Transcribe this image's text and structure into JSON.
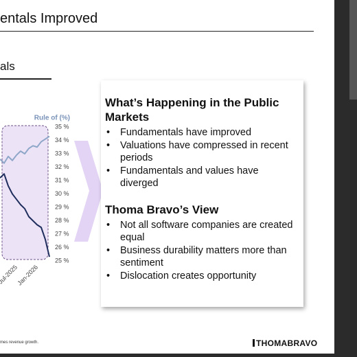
{
  "header": {
    "title": "entals Improved",
    "subtitle": "als"
  },
  "chart_data": {
    "type": "line",
    "y_axis_label": "Rule of (%)",
    "ylim": [
      25,
      35
    ],
    "yticks": [
      {
        "value": 25,
        "label": "25 %"
      },
      {
        "value": 26,
        "label": "26 %"
      },
      {
        "value": 27,
        "label": "27 %"
      },
      {
        "value": 28,
        "label": "28 %"
      },
      {
        "value": 29,
        "label": "29 %"
      },
      {
        "value": 30,
        "label": "30 %"
      },
      {
        "value": 31,
        "label": "31 %"
      },
      {
        "value": 32,
        "label": "32 %"
      },
      {
        "value": 33,
        "label": "33 %"
      },
      {
        "value": 34,
        "label": "34 %"
      },
      {
        "value": 35,
        "label": "35 %"
      }
    ],
    "xlim": [
      0,
      12
    ],
    "xticks": [
      {
        "value": 4,
        "label": "Jul-2025"
      },
      {
        "value": 9,
        "label": "Jan-2026"
      }
    ],
    "series": [
      {
        "color": "#8ea6c8",
        "values": [
          32.6,
          32.3,
          32.8,
          32.5,
          32.9,
          33.2,
          33.0,
          33.4,
          33.6,
          33.5,
          33.9,
          34.1,
          34.3
        ]
      },
      {
        "color": "#1e2d5c",
        "values": [
          31.2,
          31.5,
          30.6,
          30.0,
          29.6,
          29.2,
          28.9,
          28.3,
          28.0,
          27.7,
          27.5,
          26.6,
          25.3
        ]
      }
    ]
  },
  "panel": {
    "sections": [
      {
        "heading": "What’s Happening in the Public Markets",
        "bullets": [
          "Fundamentals have improved",
          "Valuations have compressed in recent periods",
          "Fundamentals and values have diverged"
        ]
      },
      {
        "heading": "Thoma Bravo’s View",
        "bullets": [
          "Not all software companies are created equal",
          "Business durability matters more than sentiment",
          "Dislocation creates opportunity"
        ]
      }
    ]
  },
  "footer": {
    "note": "mes revenue growth.",
    "logo": "THOMABRAVO"
  }
}
